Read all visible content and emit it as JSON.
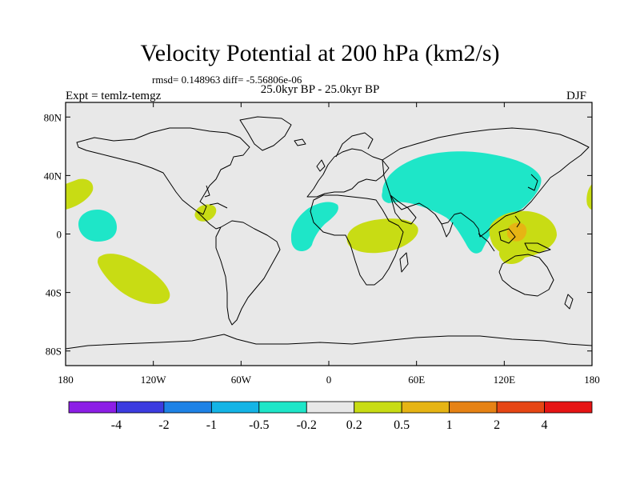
{
  "title": "Velocity Potential at 200 hPa (km2/s)",
  "stats": "rmsd= 0.148963 diff= -5.56806e-06",
  "experiment": "Expt = temlz-temgz",
  "period": "25.0kyr BP - 25.0kyr BP",
  "season": "DJF",
  "map": {
    "lon_range": [
      -180,
      180
    ],
    "lat_range": [
      -90,
      90
    ],
    "lat_ticks": [
      {
        "value": 80,
        "label": "80N"
      },
      {
        "value": 40,
        "label": "40N"
      },
      {
        "value": 0,
        "label": "0"
      },
      {
        "value": -40,
        "label": "40S"
      },
      {
        "value": -80,
        "label": "80S"
      }
    ],
    "lon_ticks": [
      {
        "value": -180,
        "label": "180"
      },
      {
        "value": -120,
        "label": "120W"
      },
      {
        "value": -60,
        "label": "60W"
      },
      {
        "value": 0,
        "label": "0"
      },
      {
        "value": 60,
        "label": "60E"
      },
      {
        "value": 120,
        "label": "120E"
      },
      {
        "value": 180,
        "label": "180"
      }
    ],
    "land_color": "#e8e8e8"
  },
  "colorbar": {
    "colors": [
      "#8c1ee6",
      "#3c3ce0",
      "#1e82e6",
      "#14b4e6",
      "#1ee6c8",
      "#e8e8e8",
      "#c8dc14",
      "#e6b414",
      "#e68214",
      "#e64614",
      "#e61414"
    ],
    "labels": [
      "-4",
      "-2",
      "-1",
      "-0.5",
      "-0.2",
      "0.2",
      "0.5",
      "1",
      "2",
      "4"
    ]
  }
}
